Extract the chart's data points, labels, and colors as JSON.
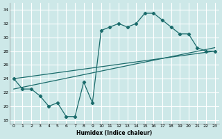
{
  "xlabel": "Humidex (Indice chaleur)",
  "xlim": [
    -0.5,
    23.5
  ],
  "ylim": [
    17.5,
    35
  ],
  "yticks": [
    18,
    20,
    22,
    24,
    26,
    28,
    30,
    32,
    34
  ],
  "xticks": [
    0,
    1,
    2,
    3,
    4,
    5,
    6,
    7,
    8,
    9,
    10,
    11,
    12,
    13,
    14,
    15,
    16,
    17,
    18,
    19,
    20,
    21,
    22,
    23
  ],
  "bg_color": "#cde8e8",
  "grid_color": "#ffffff",
  "line_color": "#1a6b6b",
  "line1_x": [
    0,
    1,
    2,
    3,
    4,
    5,
    6,
    7,
    8,
    9,
    10,
    11,
    12,
    13,
    14,
    15,
    16,
    17,
    18,
    19,
    20,
    21,
    22,
    23
  ],
  "line1_y": [
    24,
    22.5,
    22.5,
    21.5,
    20,
    20.5,
    18.5,
    18.5,
    23.5,
    20.5,
    31,
    31.5,
    32,
    31.5,
    32,
    33.5,
    33.5,
    32.5,
    31.5,
    30.5,
    30.5,
    28.5,
    28.0,
    28.0
  ],
  "line2_x": [
    0,
    23
  ],
  "line2_y": [
    24.0,
    28.0
  ],
  "line3_x": [
    0,
    23
  ],
  "line3_y": [
    22.5,
    28.5
  ]
}
